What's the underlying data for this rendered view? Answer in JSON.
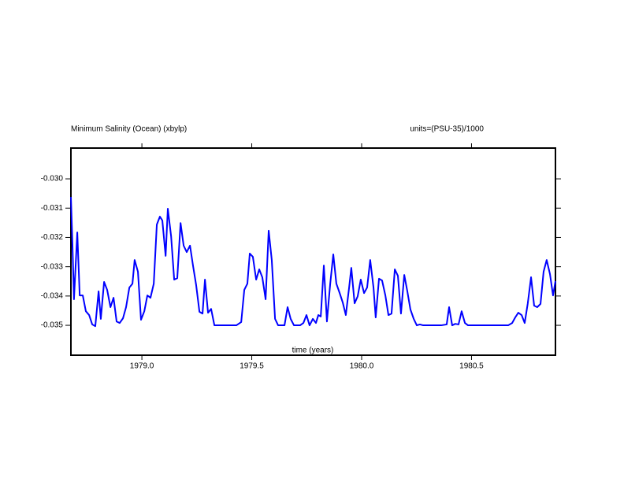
{
  "chart_data": {
    "type": "line",
    "title": "Minimum Salinity (Ocean) (xbylp)",
    "subtitle": "units=(PSU-35)/1000",
    "x_label": "time (years)",
    "color": "#0000ff",
    "xlim": [
      1978.677,
      1980.882
    ],
    "ylim": [
      -0.03602,
      -0.02895
    ],
    "xticks": [
      {
        "value": 1979.0,
        "label": "1979.0"
      },
      1979.5,
      {
        "value": 1980.0,
        "label": "1980.0"
      },
      1980.5
    ],
    "yticks": [
      {
        "value": -0.03,
        "label": "-0.030"
      },
      -0.031,
      -0.032,
      -0.033,
      -0.034,
      -0.035
    ],
    "x": [
      1978.677,
      1978.684,
      1978.691,
      1978.706,
      1978.717,
      1978.731,
      1978.745,
      1978.76,
      1978.774,
      1978.788,
      1978.803,
      1978.813,
      1978.828,
      1978.842,
      1978.857,
      1978.871,
      1978.885,
      1978.899,
      1978.914,
      1978.928,
      1978.943,
      1978.957,
      1978.967,
      1978.982,
      1978.996,
      1979.011,
      1979.025,
      1979.039,
      1979.054,
      1979.068,
      1979.082,
      1979.093,
      1979.108,
      1979.118,
      1979.133,
      1979.147,
      1979.161,
      1979.176,
      1979.19,
      1979.204,
      1979.219,
      1979.233,
      1979.247,
      1979.262,
      1979.276,
      1979.287,
      1979.301,
      1979.315,
      1979.33,
      1979.358,
      1979.394,
      1979.43,
      1979.452,
      1979.466,
      1979.48,
      1979.491,
      1979.505,
      1979.52,
      1979.534,
      1979.548,
      1979.563,
      1979.577,
      1979.591,
      1979.606,
      1979.62,
      1979.634,
      1979.649,
      1979.663,
      1979.677,
      1979.692,
      1979.706,
      1979.72,
      1979.735,
      1979.749,
      1979.763,
      1979.778,
      1979.792,
      1979.803,
      1979.814,
      1979.828,
      1979.842,
      1979.857,
      1979.871,
      1979.885,
      1979.9,
      1979.914,
      1979.928,
      1979.943,
      1979.953,
      1979.968,
      1979.982,
      1979.996,
      1980.011,
      1980.025,
      1980.039,
      1980.054,
      1980.064,
      1980.079,
      1980.093,
      1980.108,
      1980.122,
      1980.136,
      1980.151,
      1980.165,
      1980.179,
      1980.194,
      1980.208,
      1980.222,
      1980.237,
      1980.251,
      1980.265,
      1980.28,
      1980.326,
      1980.362,
      1980.387,
      1980.398,
      1980.412,
      1980.426,
      1980.441,
      1980.455,
      1980.47,
      1980.484,
      1980.541,
      1980.613,
      1980.667,
      1980.685,
      1980.699,
      1980.713,
      1980.728,
      1980.742,
      1980.756,
      1980.771,
      1980.785,
      1980.799,
      1980.814,
      1980.828,
      1980.842,
      1980.857,
      1980.871,
      1980.882
    ],
    "values": [
      -0.03062,
      -0.03223,
      -0.03411,
      -0.03183,
      -0.03398,
      -0.03398,
      -0.03452,
      -0.03465,
      -0.03497,
      -0.03503,
      -0.03384,
      -0.03478,
      -0.03352,
      -0.03379,
      -0.03438,
      -0.03406,
      -0.03487,
      -0.03492,
      -0.03476,
      -0.03438,
      -0.03371,
      -0.03358,
      -0.03277,
      -0.03317,
      -0.03481,
      -0.03452,
      -0.03398,
      -0.03406,
      -0.03358,
      -0.03156,
      -0.03129,
      -0.03142,
      -0.03263,
      -0.03102,
      -0.03196,
      -0.03344,
      -0.03339,
      -0.03151,
      -0.03228,
      -0.0325,
      -0.03228,
      -0.03298,
      -0.03363,
      -0.03454,
      -0.0346,
      -0.03344,
      -0.03457,
      -0.03444,
      -0.035,
      -0.035,
      -0.035,
      -0.035,
      -0.03489,
      -0.03379,
      -0.03358,
      -0.03255,
      -0.03266,
      -0.03344,
      -0.03309,
      -0.03336,
      -0.03411,
      -0.03177,
      -0.03277,
      -0.03478,
      -0.035,
      -0.035,
      -0.035,
      -0.03438,
      -0.03478,
      -0.035,
      -0.035,
      -0.035,
      -0.03492,
      -0.03465,
      -0.035,
      -0.03478,
      -0.03492,
      -0.03465,
      -0.0347,
      -0.03296,
      -0.03487,
      -0.03358,
      -0.03258,
      -0.03358,
      -0.0339,
      -0.03422,
      -0.03465,
      -0.03371,
      -0.03304,
      -0.03425,
      -0.03401,
      -0.03344,
      -0.0339,
      -0.03371,
      -0.03277,
      -0.03371,
      -0.03473,
      -0.03341,
      -0.03347,
      -0.03398,
      -0.03465,
      -0.0346,
      -0.03309,
      -0.03331,
      -0.0346,
      -0.03328,
      -0.03384,
      -0.03446,
      -0.03478,
      -0.035,
      -0.03497,
      -0.035,
      -0.035,
      -0.035,
      -0.03497,
      -0.03438,
      -0.035,
      -0.03495,
      -0.03497,
      -0.03452,
      -0.03492,
      -0.035,
      -0.035,
      -0.035,
      -0.035,
      -0.03492,
      -0.03473,
      -0.03457,
      -0.03465,
      -0.03492,
      -0.03425,
      -0.03336,
      -0.03433,
      -0.03438,
      -0.03427,
      -0.03317,
      -0.03277,
      -0.03325,
      -0.03398,
      -0.03349
    ]
  }
}
